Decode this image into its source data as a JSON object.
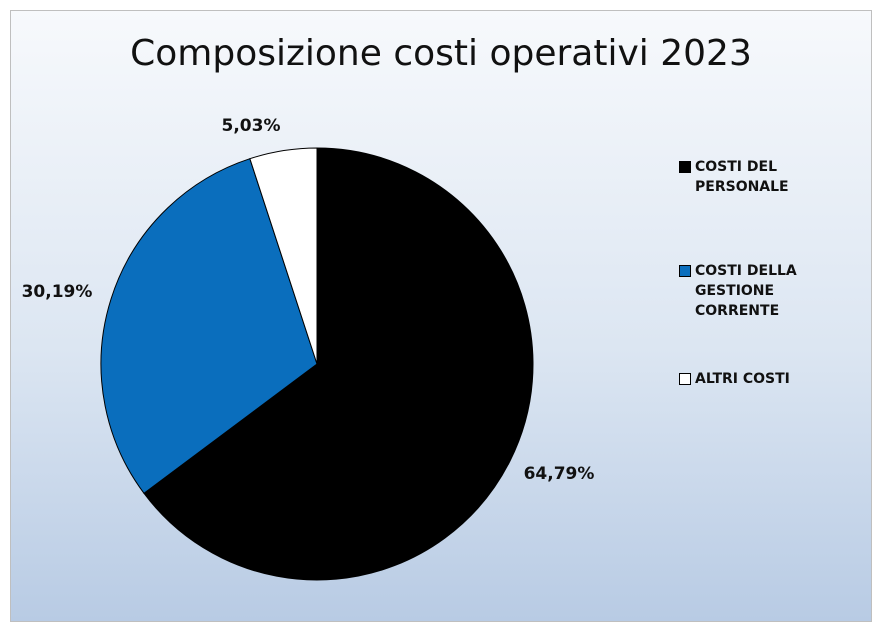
{
  "chart_data": {
    "type": "pie",
    "title": "Composizione costi operativi 2023",
    "categories": [
      "COSTI DEL PERSONALE",
      "COSTI DELLA GESTIONE CORRENTE",
      "ALTRI COSTI"
    ],
    "values": [
      64.79,
      30.19,
      5.03
    ],
    "data_labels": [
      "64,79%",
      "30,19%",
      "5,03%"
    ],
    "colors": [
      "#000000",
      "#0a6ebd",
      "#ffffff"
    ],
    "start_angle_deg": 0,
    "direction": "clockwise",
    "legend_position": "right",
    "legend": [
      {
        "label": "COSTI DEL PERSONALE",
        "color": "#000000"
      },
      {
        "label": "COSTI DELLA GESTIONE CORRENTE",
        "color": "#0a6ebd"
      },
      {
        "label": "ALTRI COSTI",
        "color": "#ffffff"
      }
    ]
  }
}
